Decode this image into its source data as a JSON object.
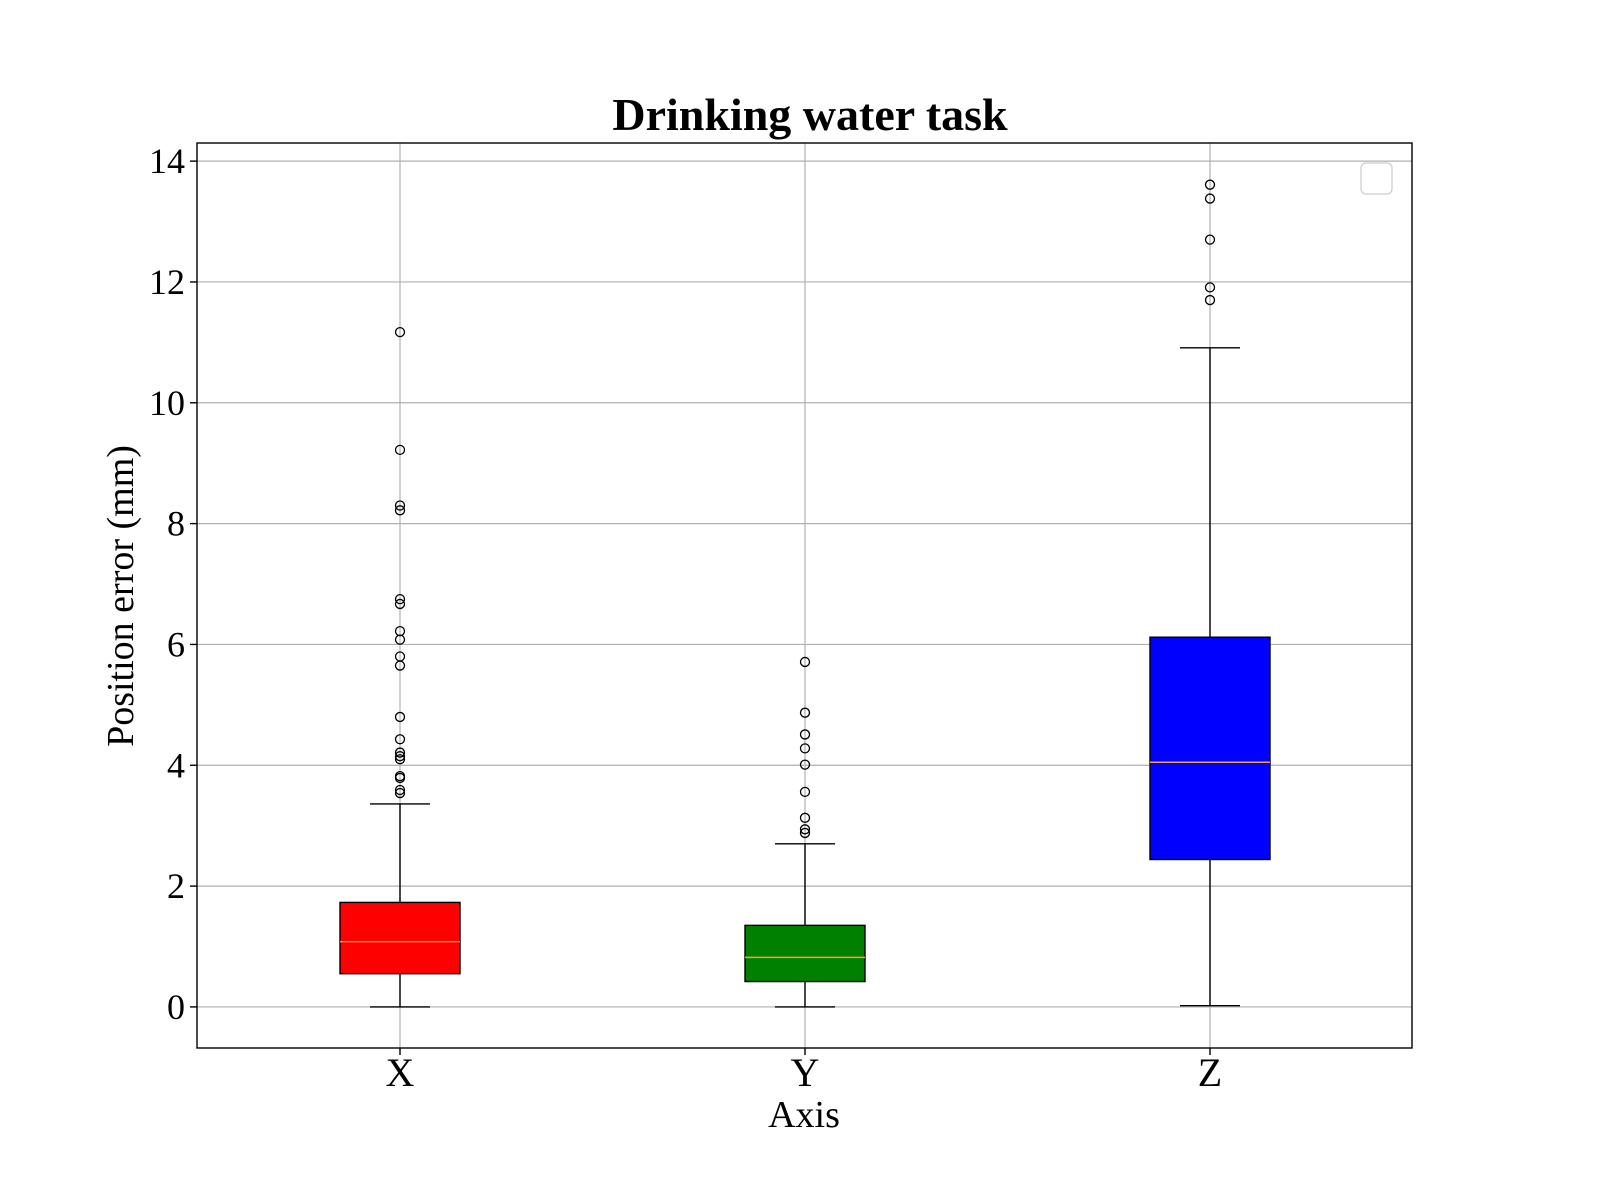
{
  "chart_data": {
    "type": "box",
    "title": "Drinking water task",
    "xlabel": "Axis",
    "ylabel": "Position error (mm)",
    "ylim": [
      -0.68,
      14.3
    ],
    "yticks": [
      0,
      2,
      4,
      6,
      8,
      10,
      12,
      14
    ],
    "grid": true,
    "legend": "upper right (empty)",
    "categories": [
      "X",
      "Y",
      "Z"
    ],
    "boxes": [
      {
        "category": "X",
        "color": "#ff0000",
        "median_color": "#f5a03c",
        "whisker_low": 0.0,
        "q1": 0.55,
        "median": 1.08,
        "q3": 1.73,
        "whisker_high": 3.36,
        "outliers": [
          3.54,
          3.59,
          3.79,
          3.82,
          4.1,
          4.15,
          4.21,
          4.43,
          4.8,
          5.65,
          5.8,
          6.08,
          6.22,
          6.67,
          6.75,
          8.22,
          8.3,
          9.22,
          11.17
        ]
      },
      {
        "category": "Y",
        "color": "#008000",
        "median_color": "#f5a03c",
        "whisker_low": 0.0,
        "q1": 0.42,
        "median": 0.82,
        "q3": 1.35,
        "whisker_high": 2.7,
        "outliers": [
          2.88,
          2.94,
          3.13,
          3.56,
          4.01,
          4.28,
          4.51,
          4.87,
          5.71
        ]
      },
      {
        "category": "Z",
        "color": "#0000ff",
        "median_color": "#f5a03c",
        "whisker_low": 0.02,
        "q1": 2.44,
        "median": 4.05,
        "q3": 6.12,
        "whisker_high": 10.91,
        "outliers": [
          11.7,
          11.91,
          12.7,
          13.38,
          13.61
        ]
      }
    ]
  }
}
